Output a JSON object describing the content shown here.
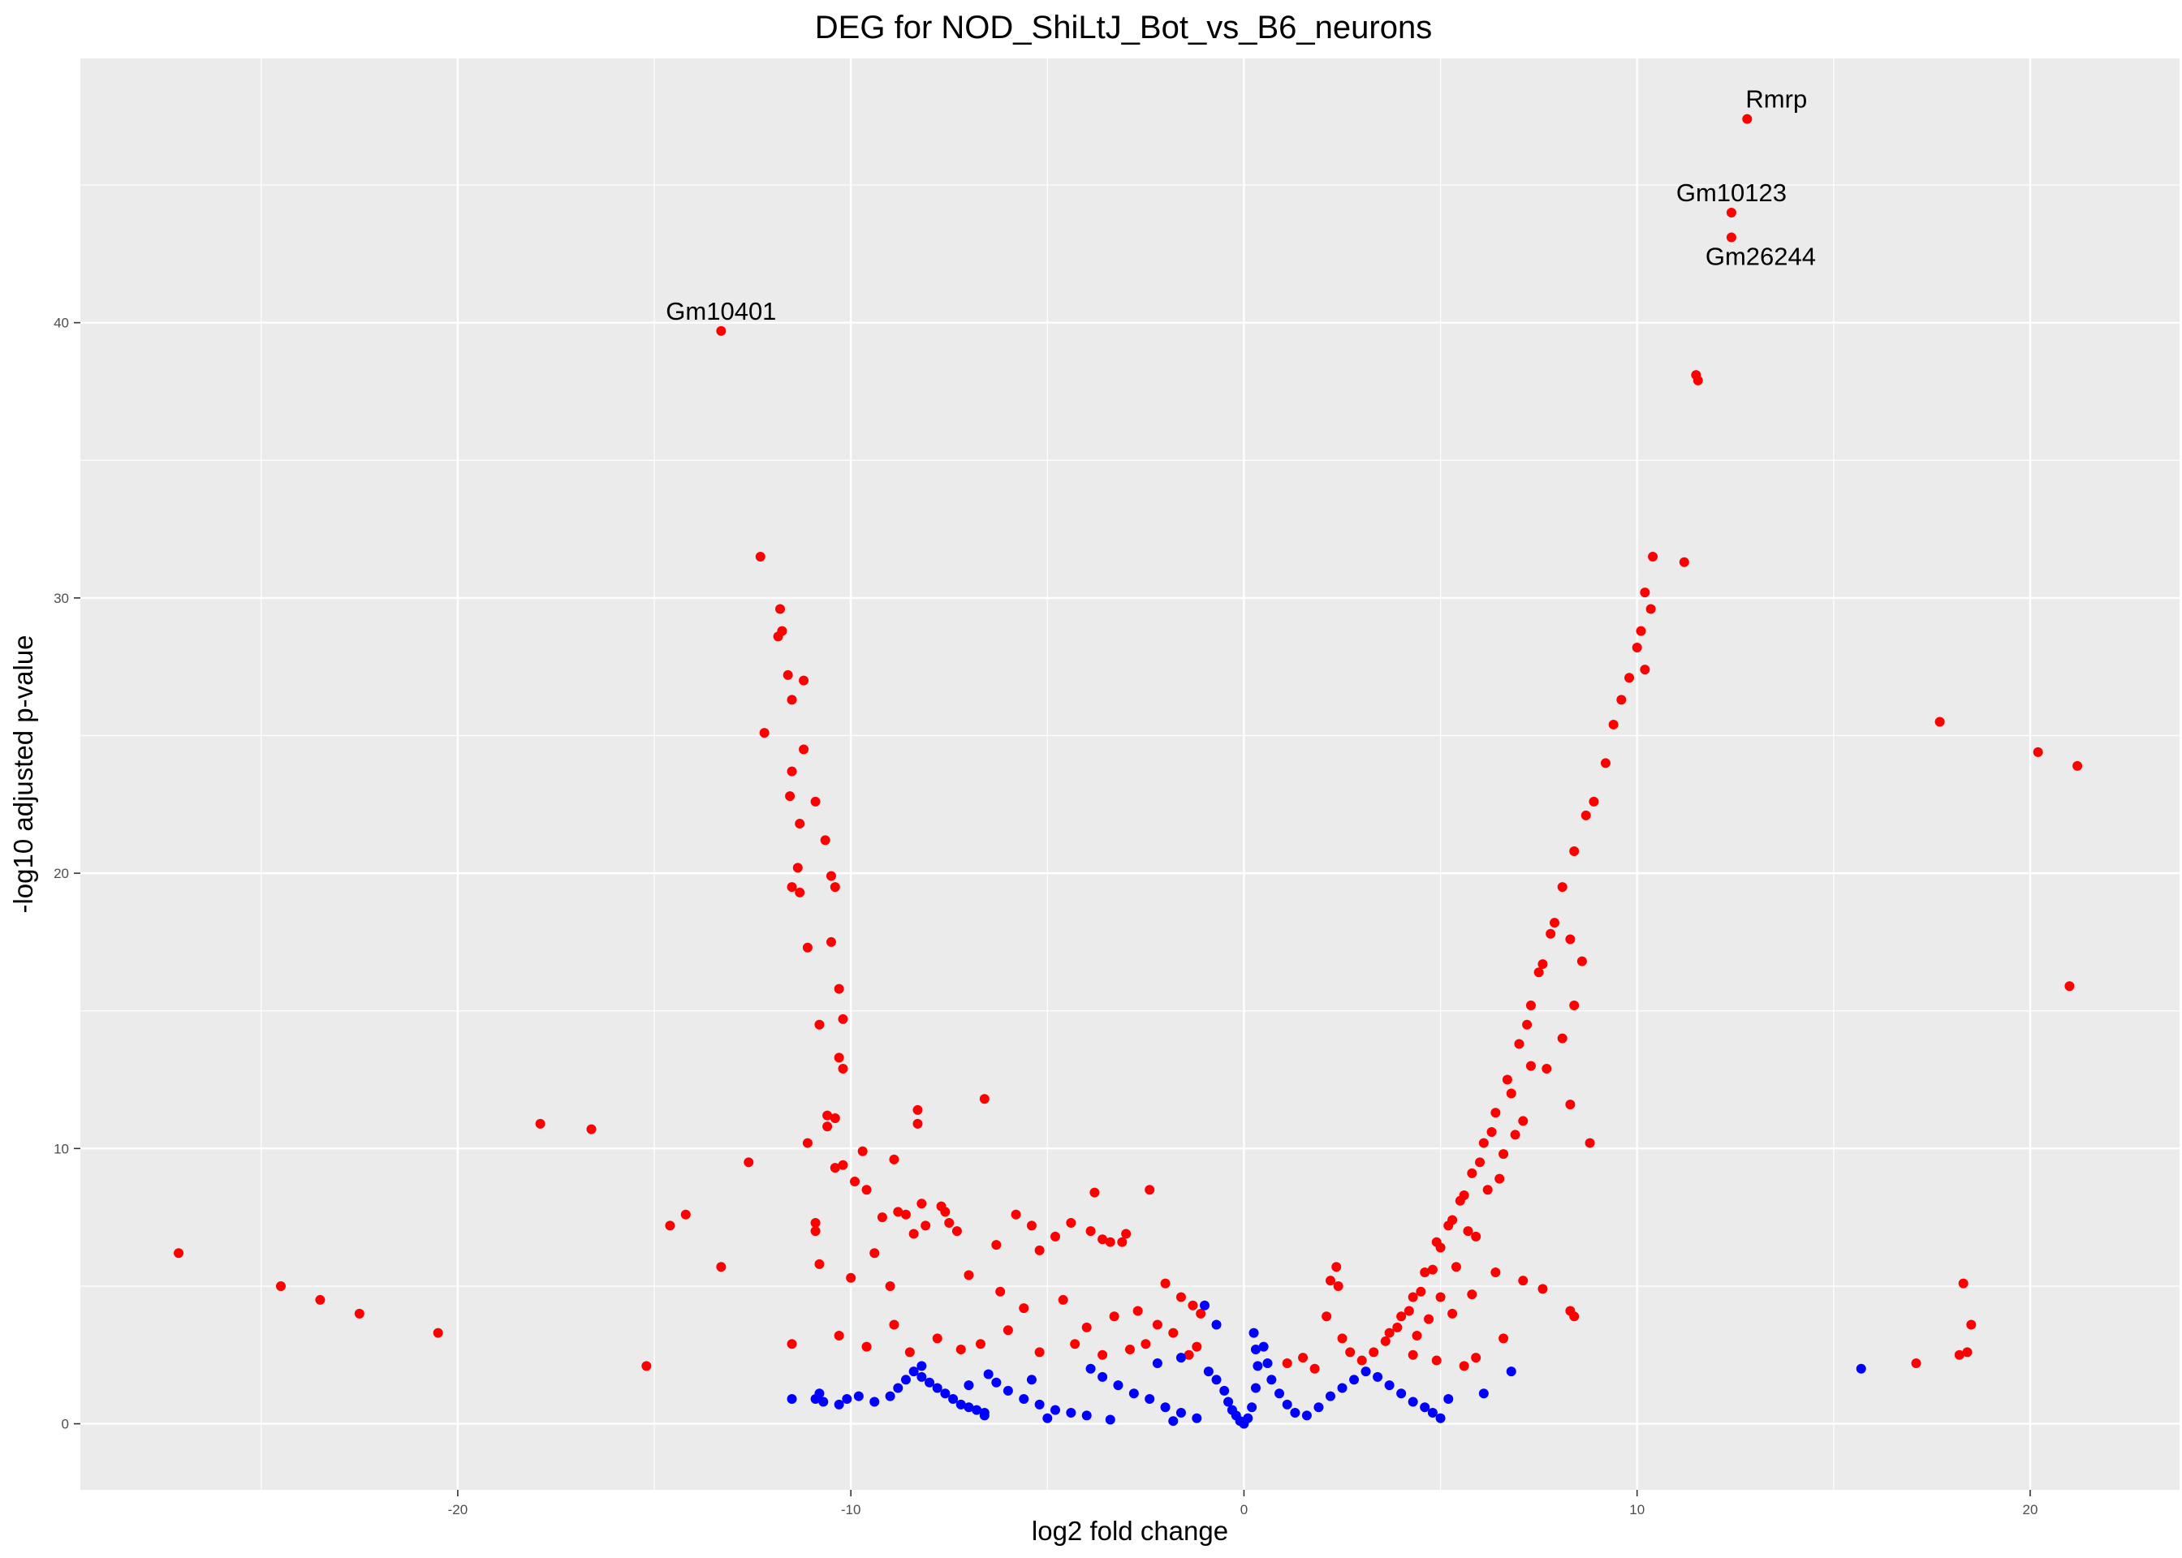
{
  "chart_data": {
    "type": "scatter",
    "title": "DEG for NOD_ShiLtJ_Bot_vs_B6_neurons",
    "xlabel": "log2 fold change",
    "ylabel": "-log10 adjusted p-value",
    "xlim": [
      -29.6,
      23.8
    ],
    "ylim": [
      -2.4,
      49.6
    ],
    "x_ticks": [
      -20,
      -10,
      0,
      10,
      20
    ],
    "y_ticks": [
      0,
      10,
      20,
      30,
      40
    ],
    "x_minor_ticks": [
      -25,
      -15,
      -5,
      5,
      15
    ],
    "y_minor_ticks": [
      5,
      15,
      25,
      35,
      45
    ],
    "grid": true,
    "legend": "none",
    "colors": {
      "significant": "#ff0000",
      "not_significant": "#0000ff",
      "panel": "#ebebeb",
      "grid": "#ffffff"
    },
    "labeled_points": [
      {
        "name": "Rmrp",
        "x": 12.8,
        "y": 47.4
      },
      {
        "name": "Gm10123",
        "x": 12.4,
        "y": 44.0
      },
      {
        "name": "Gm26244",
        "x": 12.4,
        "y": 43.1
      },
      {
        "name": "Gm10401",
        "x": -13.3,
        "y": 39.7
      }
    ],
    "series": [
      {
        "color": "#ff0000",
        "points": [
          [
            -27.1,
            6.2
          ],
          [
            -24.5,
            5.0
          ],
          [
            -23.5,
            4.5
          ],
          [
            -22.5,
            4.0
          ],
          [
            -20.5,
            3.3
          ],
          [
            -17.9,
            10.9
          ],
          [
            -16.6,
            10.7
          ],
          [
            -15.2,
            2.1
          ],
          [
            -14.6,
            7.2
          ],
          [
            -14.2,
            7.6
          ],
          [
            -13.3,
            5.7
          ],
          [
            -12.6,
            9.5
          ],
          [
            -12.3,
            31.5
          ],
          [
            -12.2,
            25.1
          ],
          [
            -11.8,
            29.6
          ],
          [
            -11.85,
            28.6
          ],
          [
            -11.75,
            28.8
          ],
          [
            -11.6,
            27.2
          ],
          [
            -11.5,
            26.3
          ],
          [
            -11.5,
            23.7
          ],
          [
            -11.55,
            22.8
          ],
          [
            -11.3,
            21.8
          ],
          [
            -11.35,
            20.2
          ],
          [
            -11.5,
            19.5
          ],
          [
            -11.3,
            19.3
          ],
          [
            -11.2,
            27.0
          ],
          [
            -11.2,
            24.5
          ],
          [
            -11.1,
            17.3
          ],
          [
            -10.9,
            22.6
          ],
          [
            -10.65,
            21.2
          ],
          [
            -10.5,
            19.9
          ],
          [
            -10.4,
            19.5
          ],
          [
            -10.5,
            17.5
          ],
          [
            -10.3,
            15.8
          ],
          [
            -10.2,
            14.7
          ],
          [
            -10.8,
            14.5
          ],
          [
            -10.3,
            13.3
          ],
          [
            -10.2,
            12.9
          ],
          [
            -10.6,
            11.2
          ],
          [
            -10.4,
            11.1
          ],
          [
            -10.6,
            10.8
          ],
          [
            -11.1,
            10.2
          ],
          [
            -10.4,
            9.3
          ],
          [
            -10.2,
            9.4
          ],
          [
            -9.9,
            8.8
          ],
          [
            -9.7,
            9.9
          ],
          [
            -9.6,
            8.5
          ],
          [
            -9.2,
            7.5
          ],
          [
            -8.8,
            7.7
          ],
          [
            -8.6,
            7.6
          ],
          [
            -8.3,
            11.4
          ],
          [
            -8.3,
            10.9
          ],
          [
            -8.2,
            8.0
          ],
          [
            -8.1,
            7.2
          ],
          [
            -8.4,
            6.9
          ],
          [
            -8.9,
            9.6
          ],
          [
            -7.7,
            7.9
          ],
          [
            -7.6,
            7.7
          ],
          [
            -7.5,
            7.3
          ],
          [
            -7.3,
            7.0
          ],
          [
            -6.6,
            11.8
          ],
          [
            -6.3,
            6.5
          ],
          [
            -5.8,
            7.6
          ],
          [
            -5.4,
            7.2
          ],
          [
            -5.2,
            6.3
          ],
          [
            -4.8,
            6.8
          ],
          [
            -4.4,
            7.3
          ],
          [
            -3.8,
            8.4
          ],
          [
            -3.9,
            7.0
          ],
          [
            -3.6,
            6.7
          ],
          [
            -3.4,
            6.6
          ],
          [
            -3.1,
            6.6
          ],
          [
            -3.0,
            6.9
          ],
          [
            -2.4,
            8.5
          ],
          [
            -2.0,
            5.1
          ],
          [
            -1.6,
            4.6
          ],
          [
            -1.3,
            4.3
          ],
          [
            -1.1,
            4.0
          ],
          [
            -10.9,
            7.3
          ],
          [
            -10.9,
            7.0
          ],
          [
            -11.5,
            2.9
          ],
          [
            -10.8,
            5.8
          ],
          [
            -10.0,
            5.3
          ],
          [
            -9.4,
            6.2
          ],
          [
            -9.0,
            5.0
          ],
          [
            -7.0,
            5.4
          ],
          [
            -6.2,
            4.8
          ],
          [
            -5.6,
            4.2
          ],
          [
            -4.6,
            4.5
          ],
          [
            -4.0,
            3.5
          ],
          [
            -3.3,
            3.9
          ],
          [
            -2.7,
            4.1
          ],
          [
            -2.2,
            3.6
          ],
          [
            -1.8,
            3.3
          ],
          [
            -10.3,
            3.2
          ],
          [
            -9.6,
            2.8
          ],
          [
            -8.9,
            3.6
          ],
          [
            -8.5,
            2.6
          ],
          [
            -7.8,
            3.1
          ],
          [
            -7.2,
            2.7
          ],
          [
            -6.7,
            2.9
          ],
          [
            -6.0,
            3.4
          ],
          [
            -5.2,
            2.6
          ],
          [
            -4.3,
            2.9
          ],
          [
            -3.6,
            2.5
          ],
          [
            -2.9,
            2.7
          ],
          [
            -2.5,
            2.9
          ],
          [
            -1.4,
            2.5
          ],
          [
            -1.2,
            2.8
          ],
          [
            1.1,
            2.2
          ],
          [
            1.5,
            2.4
          ],
          [
            1.8,
            2.0
          ],
          [
            2.1,
            3.9
          ],
          [
            2.2,
            5.2
          ],
          [
            2.4,
            5.0
          ],
          [
            2.35,
            5.7
          ],
          [
            2.5,
            3.1
          ],
          [
            2.7,
            2.6
          ],
          [
            3.0,
            2.3
          ],
          [
            3.3,
            2.6
          ],
          [
            3.6,
            3.0
          ],
          [
            3.9,
            3.5
          ],
          [
            4.2,
            4.1
          ],
          [
            4.5,
            4.8
          ],
          [
            4.8,
            5.6
          ],
          [
            5.0,
            6.4
          ],
          [
            5.2,
            7.2
          ],
          [
            5.5,
            8.1
          ],
          [
            5.8,
            9.1
          ],
          [
            6.1,
            10.2
          ],
          [
            6.4,
            11.3
          ],
          [
            6.7,
            12.5
          ],
          [
            7.0,
            13.8
          ],
          [
            7.3,
            15.2
          ],
          [
            7.6,
            16.7
          ],
          [
            7.9,
            18.2
          ],
          [
            8.1,
            19.5
          ],
          [
            8.4,
            20.8
          ],
          [
            8.7,
            22.1
          ],
          [
            8.9,
            22.6
          ],
          [
            9.2,
            24.0
          ],
          [
            9.4,
            25.4
          ],
          [
            9.6,
            26.3
          ],
          [
            9.8,
            27.1
          ],
          [
            10.0,
            28.2
          ],
          [
            10.1,
            28.8
          ],
          [
            10.2,
            30.2
          ],
          [
            10.35,
            29.6
          ],
          [
            10.4,
            31.5
          ],
          [
            10.2,
            27.4
          ],
          [
            11.2,
            31.3
          ],
          [
            11.5,
            38.1
          ],
          [
            11.55,
            37.9
          ],
          [
            7.5,
            16.4
          ],
          [
            7.8,
            17.8
          ],
          [
            8.3,
            17.6
          ],
          [
            8.4,
            15.2
          ],
          [
            8.1,
            14.0
          ],
          [
            8.6,
            16.8
          ],
          [
            7.2,
            14.5
          ],
          [
            6.8,
            12.0
          ],
          [
            6.3,
            10.6
          ],
          [
            6.0,
            9.5
          ],
          [
            5.6,
            8.3
          ],
          [
            5.3,
            7.4
          ],
          [
            4.9,
            6.6
          ],
          [
            4.6,
            5.5
          ],
          [
            4.3,
            4.6
          ],
          [
            4.0,
            3.9
          ],
          [
            3.7,
            3.3
          ],
          [
            5.7,
            7.0
          ],
          [
            6.2,
            8.5
          ],
          [
            6.6,
            9.8
          ],
          [
            7.1,
            11.0
          ],
          [
            7.7,
            12.9
          ],
          [
            8.3,
            11.6
          ],
          [
            8.8,
            10.2
          ],
          [
            7.3,
            13.0
          ],
          [
            6.9,
            10.5
          ],
          [
            6.5,
            8.9
          ],
          [
            5.9,
            6.8
          ],
          [
            5.4,
            5.7
          ],
          [
            5.0,
            4.6
          ],
          [
            4.7,
            3.8
          ],
          [
            4.4,
            3.2
          ],
          [
            5.3,
            4.0
          ],
          [
            5.8,
            4.7
          ],
          [
            6.4,
            5.5
          ],
          [
            7.1,
            5.2
          ],
          [
            7.6,
            4.9
          ],
          [
            8.3,
            4.1
          ],
          [
            8.4,
            3.9
          ],
          [
            6.6,
            3.1
          ],
          [
            5.9,
            2.4
          ],
          [
            5.6,
            2.1
          ],
          [
            4.9,
            2.3
          ],
          [
            4.3,
            2.5
          ],
          [
            17.7,
            25.5
          ],
          [
            20.2,
            24.4
          ],
          [
            21.2,
            23.9
          ],
          [
            21.0,
            15.9
          ],
          [
            18.3,
            5.1
          ],
          [
            18.5,
            3.6
          ],
          [
            18.2,
            2.5
          ],
          [
            18.4,
            2.6
          ],
          [
            17.1,
            2.2
          ]
        ]
      },
      {
        "color": "#0000ff",
        "points": [
          [
            -11.5,
            0.9
          ],
          [
            -10.9,
            0.9
          ],
          [
            -10.8,
            1.1
          ],
          [
            -10.7,
            0.8
          ],
          [
            -10.3,
            0.7
          ],
          [
            -10.1,
            0.9
          ],
          [
            -9.8,
            1.0
          ],
          [
            -9.4,
            0.8
          ],
          [
            -9.0,
            1.0
          ],
          [
            -8.8,
            1.3
          ],
          [
            -8.6,
            1.6
          ],
          [
            -8.4,
            1.9
          ],
          [
            -8.2,
            1.7
          ],
          [
            -8.0,
            1.5
          ],
          [
            -7.8,
            1.3
          ],
          [
            -7.6,
            1.1
          ],
          [
            -7.4,
            0.9
          ],
          [
            -7.2,
            0.7
          ],
          [
            -7.0,
            0.6
          ],
          [
            -6.8,
            0.5
          ],
          [
            -6.6,
            0.4
          ],
          [
            -6.5,
            1.8
          ],
          [
            -6.3,
            1.5
          ],
          [
            -6.0,
            1.2
          ],
          [
            -5.6,
            0.9
          ],
          [
            -5.2,
            0.7
          ],
          [
            -4.8,
            0.5
          ],
          [
            -4.4,
            0.4
          ],
          [
            -4.0,
            0.3
          ],
          [
            -3.6,
            1.7
          ],
          [
            -3.2,
            1.4
          ],
          [
            -2.8,
            1.1
          ],
          [
            -2.4,
            0.9
          ],
          [
            -2.0,
            0.6
          ],
          [
            -1.6,
            0.4
          ],
          [
            -1.2,
            0.2
          ],
          [
            -0.9,
            1.9
          ],
          [
            -0.7,
            1.6
          ],
          [
            -0.5,
            1.2
          ],
          [
            -0.4,
            0.8
          ],
          [
            -0.3,
            0.5
          ],
          [
            -0.2,
            0.3
          ],
          [
            -0.1,
            0.1
          ],
          [
            0.0,
            0.0
          ],
          [
            0.1,
            0.2
          ],
          [
            0.2,
            0.6
          ],
          [
            0.3,
            1.3
          ],
          [
            0.35,
            2.1
          ],
          [
            0.3,
            2.7
          ],
          [
            0.25,
            3.3
          ],
          [
            0.5,
            2.8
          ],
          [
            0.6,
            2.2
          ],
          [
            0.7,
            1.6
          ],
          [
            0.9,
            1.1
          ],
          [
            1.1,
            0.7
          ],
          [
            1.3,
            0.4
          ],
          [
            1.6,
            0.3
          ],
          [
            1.9,
            0.6
          ],
          [
            2.2,
            1.0
          ],
          [
            2.5,
            1.3
          ],
          [
            2.8,
            1.6
          ],
          [
            3.1,
            1.9
          ],
          [
            3.4,
            1.7
          ],
          [
            3.7,
            1.4
          ],
          [
            4.0,
            1.1
          ],
          [
            4.3,
            0.8
          ],
          [
            4.6,
            0.6
          ],
          [
            4.8,
            0.4
          ],
          [
            5.0,
            0.2
          ],
          [
            5.2,
            0.9
          ],
          [
            6.8,
            1.9
          ],
          [
            6.1,
            1.1
          ],
          [
            15.7,
            2.0
          ],
          [
            -1.0,
            4.3
          ],
          [
            -0.7,
            3.6
          ],
          [
            -1.6,
            2.4
          ],
          [
            -2.2,
            2.2
          ],
          [
            -3.9,
            2.0
          ],
          [
            -5.4,
            1.6
          ],
          [
            -7.0,
            1.4
          ],
          [
            -8.2,
            2.1
          ],
          [
            -6.6,
            0.3
          ],
          [
            -5.0,
            0.2
          ],
          [
            -3.4,
            0.15
          ],
          [
            -1.8,
            0.1
          ]
        ]
      }
    ]
  }
}
